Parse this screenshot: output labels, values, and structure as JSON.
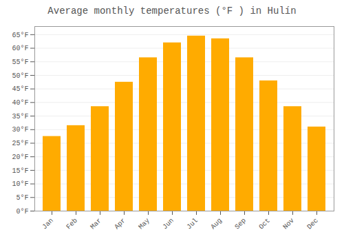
{
  "chart_data": {
    "type": "bar",
    "title": "Average monthly temperatures (°F ) in Hulín",
    "categories": [
      "Jan",
      "Feb",
      "Mar",
      "Apr",
      "May",
      "Jun",
      "Jul",
      "Aug",
      "Sep",
      "Oct",
      "Nov",
      "Dec"
    ],
    "values": [
      27.5,
      31.5,
      38.5,
      47.5,
      56.5,
      62.0,
      64.5,
      63.5,
      56.5,
      48.0,
      38.5,
      31.0
    ],
    "color": "#FFAB00",
    "ylim": [
      0,
      68
    ],
    "yticks": [
      {
        "value": 0,
        "label": "0°F"
      },
      {
        "value": 5,
        "label": "5°F"
      },
      {
        "value": 10,
        "label": "10°F"
      },
      {
        "value": 15,
        "label": "15°F"
      },
      {
        "value": 20,
        "label": "20°F"
      },
      {
        "value": 25,
        "label": "25°F"
      },
      {
        "value": 30,
        "label": "30°F"
      },
      {
        "value": 35,
        "label": "35°F"
      },
      {
        "value": 40,
        "label": "40°F"
      },
      {
        "value": 45,
        "label": "45°F"
      },
      {
        "value": 50,
        "label": "50°F"
      },
      {
        "value": 55,
        "label": "55°F"
      },
      {
        "value": 60,
        "label": "60°F"
      },
      {
        "value": 65,
        "label": "65°F"
      }
    ],
    "grid": true
  }
}
